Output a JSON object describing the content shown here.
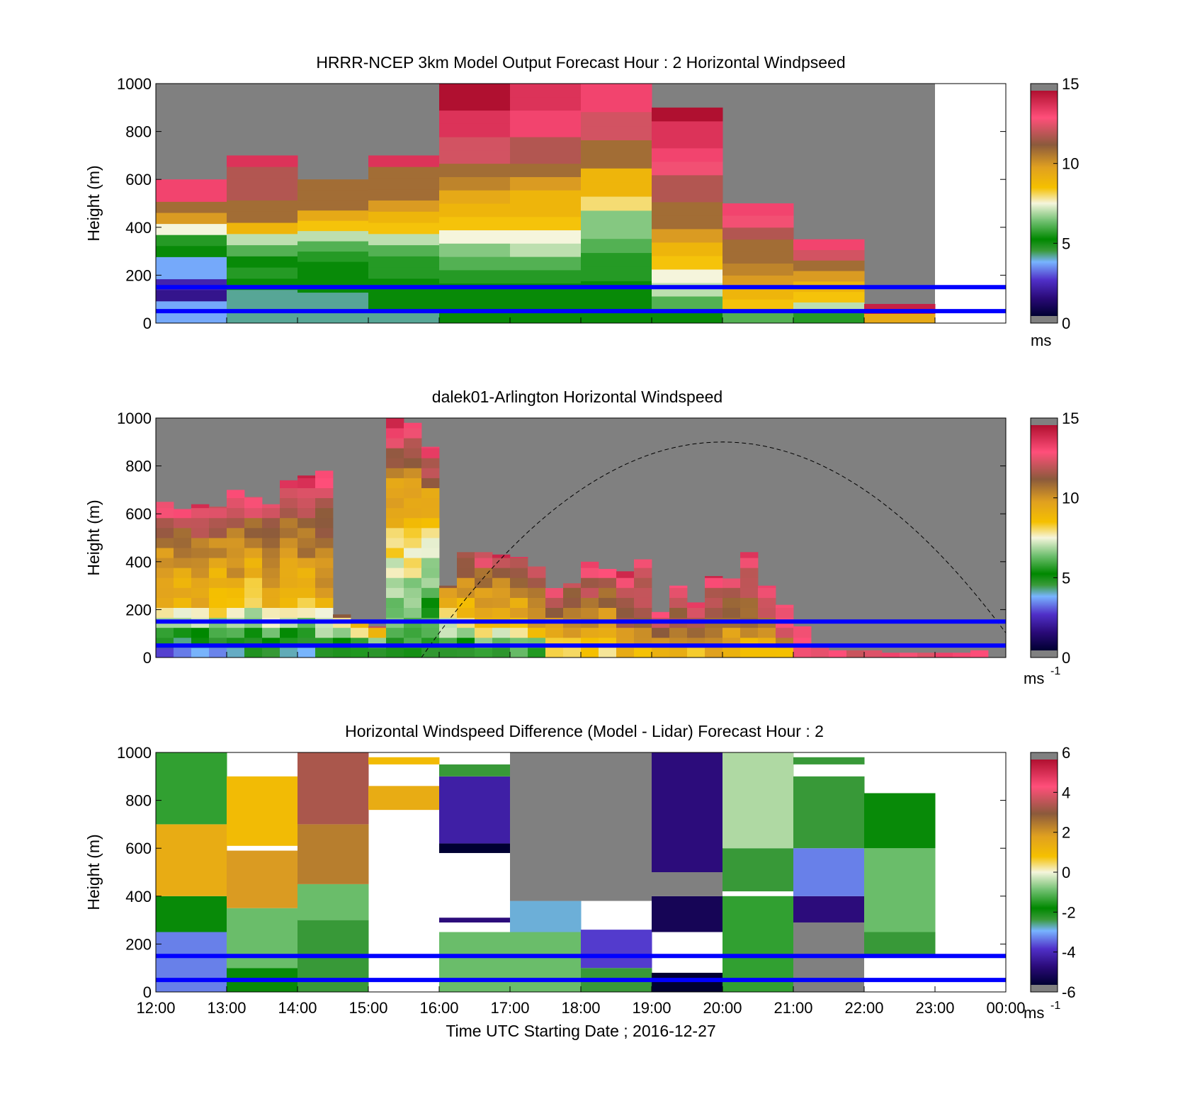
{
  "figure": {
    "xlabel": "Time UTC  Starting Date ; 2016-12-27",
    "x_tick_labels": [
      "12:00",
      "13:00",
      "14:00",
      "15:00",
      "16:00",
      "17:00",
      "18:00",
      "19:00",
      "20:00",
      "21:00",
      "22:00",
      "23:00",
      "00:00"
    ],
    "colors": {
      "missing": "#808080",
      "reference_lines": "#0000ff",
      "no_data": "#ffffff"
    }
  },
  "chart_data": [
    {
      "type": "heatmap",
      "title": "HRRR-NCEP 3km Model Output   Forecast Hour : 2 Horizontal Windpseed",
      "ylabel": "Height (m)",
      "ylim": [
        0,
        1000
      ],
      "y_ticks": [
        "0",
        "200",
        "400",
        "600",
        "800",
        "1000"
      ],
      "colorbar": {
        "range": [
          0,
          15
        ],
        "ticks": [
          "0",
          "5",
          "10",
          "15"
        ],
        "unit": "ms",
        "unit_sup": ""
      },
      "reference_lines_m": [
        150,
        50
      ],
      "columns": [
        {
          "time": "12:00",
          "top": 600,
          "levels": [
            3.5,
            3.5,
            1.5,
            2,
            3.5,
            3.5,
            5,
            5.5,
            7.5,
            10,
            11,
            13.5,
            13.5
          ]
        },
        {
          "time": "13:00",
          "top": 700,
          "levels": [
            4,
            4,
            4,
            5,
            5.5,
            5,
            6,
            7,
            9,
            11,
            11,
            12,
            12,
            12,
            14
          ]
        },
        {
          "time": "14:00",
          "top": 600,
          "levels": [
            4,
            4,
            4,
            5,
            5,
            5,
            5.5,
            6,
            7,
            8.5,
            9.5,
            11,
            11,
            11
          ]
        },
        {
          "time": "15:00",
          "top": 700,
          "levels": [
            4,
            5,
            5,
            5,
            5.5,
            5.5,
            6,
            7,
            8.5,
            9,
            10,
            11,
            11,
            11,
            14
          ]
        },
        {
          "time": "16:00",
          "top": 1000,
          "levels": [
            5,
            5,
            5,
            5.5,
            6,
            6.5,
            7.5,
            8.5,
            9,
            9.5,
            10.5,
            11,
            12.5,
            12.5,
            14,
            14,
            15,
            15
          ]
        },
        {
          "time": "17:00",
          "top": 1000,
          "levels": [
            5,
            5,
            5,
            5.5,
            6,
            7,
            7.5,
            8.5,
            9,
            9,
            10,
            11,
            12,
            12,
            13.5,
            13.5,
            14,
            14
          ]
        },
        {
          "time": "18:00",
          "top": 1000,
          "levels": [
            5,
            5,
            5,
            5.5,
            5.5,
            6,
            6.5,
            6.5,
            8,
            9,
            9,
            11,
            11,
            12.5,
            12.5,
            13.5,
            13.5
          ]
        },
        {
          "time": "19:00",
          "top": 900,
          "levels": [
            5,
            6,
            7,
            7.5,
            8.5,
            9,
            10,
            11,
            11,
            12,
            12,
            13,
            13.5,
            14,
            14,
            15
          ]
        },
        {
          "time": "20:00",
          "top": 500,
          "levels": [
            6,
            8.5,
            9,
            10,
            10.5,
            11,
            11,
            12,
            13,
            13.5
          ]
        },
        {
          "time": "21:00",
          "top": 350,
          "levels": [
            5.5,
            7,
            8.5,
            9,
            10,
            11,
            12.5,
            13.5
          ]
        },
        {
          "time": "22:00",
          "top": 80,
          "levels": [
            9.5,
            14.5
          ]
        },
        {
          "time": "23:00",
          "top": null,
          "levels": []
        }
      ]
    },
    {
      "type": "heatmap",
      "title": "dalek01-Arlington  Horizontal Windspeed",
      "ylabel": "Height (m)",
      "ylim": [
        0,
        1000
      ],
      "y_ticks": [
        "0",
        "200",
        "400",
        "600",
        "800",
        "1000"
      ],
      "colorbar": {
        "range": [
          0,
          15
        ],
        "ticks": [
          "0",
          "5",
          "10",
          "15"
        ],
        "unit": "ms",
        "unit_sup": "-1"
      },
      "reference_lines_m": [
        150,
        50
      ],
      "sun_curve": {
        "start_hour": 15.75,
        "peak_hour": 20.0,
        "peak_m": 900,
        "end_hour": 24.0
      },
      "columns": [
        {
          "time": "12:00",
          "top": 650,
          "low": 3,
          "mid": 9,
          "high": 13.5
        },
        {
          "time": "12:15",
          "top": 620,
          "low": 3,
          "mid": 8.5,
          "high": 13.5
        },
        {
          "time": "12:30",
          "top": 640,
          "low": 3,
          "mid": 9,
          "high": 14
        },
        {
          "time": "12:45",
          "top": 630,
          "low": 3,
          "mid": 8.5,
          "high": 13
        },
        {
          "time": "13:00",
          "top": 700,
          "low": 3.5,
          "mid": 9,
          "high": 14
        },
        {
          "time": "13:15",
          "top": 670,
          "low": 4,
          "mid": 8,
          "high": 13.5
        },
        {
          "time": "13:30",
          "top": 640,
          "low": 4,
          "mid": 9,
          "high": 13
        },
        {
          "time": "13:45",
          "top": 740,
          "low": 4,
          "mid": 8.5,
          "high": 14
        },
        {
          "time": "14:00",
          "top": 760,
          "low": 4,
          "mid": 9,
          "high": 14.5
        },
        {
          "time": "14:15",
          "top": 780,
          "low": 4.5,
          "mid": 9.5,
          "high": 14
        },
        {
          "time": "14:30",
          "top": 180,
          "low": 4.5,
          "mid": 6,
          "high": 12
        },
        {
          "time": "14:45",
          "top": 150,
          "low": 5,
          "mid": 6,
          "high": 11
        },
        {
          "time": "15:00",
          "top": 130,
          "low": 4.5,
          "mid": 6,
          "high": 13
        },
        {
          "time": "15:15",
          "top": 1000,
          "low": 5,
          "mid": 7,
          "high": 14.5
        },
        {
          "time": "15:30",
          "top": 980,
          "low": 5,
          "mid": 7,
          "high": 14
        },
        {
          "time": "15:45",
          "top": 880,
          "low": 5,
          "mid": 6,
          "high": 14
        },
        {
          "time": "16:00",
          "top": 300,
          "low": 5,
          "mid": 7,
          "high": 12
        },
        {
          "time": "16:15",
          "top": 440,
          "low": 4.5,
          "mid": 8.5,
          "high": 13
        },
        {
          "time": "16:30",
          "top": 440,
          "low": 5,
          "mid": 9,
          "high": 13.5
        },
        {
          "time": "16:45",
          "top": 430,
          "low": 5,
          "mid": 9,
          "high": 14
        },
        {
          "time": "17:00",
          "top": 420,
          "low": 5.5,
          "mid": 9,
          "high": 13.5
        },
        {
          "time": "17:15",
          "top": 380,
          "low": 5.5,
          "mid": 9.5,
          "high": 13
        },
        {
          "time": "17:30",
          "top": 290,
          "low": 8,
          "mid": 10,
          "high": 13.5
        },
        {
          "time": "17:45",
          "top": 310,
          "low": 7.5,
          "mid": 10,
          "high": 13
        },
        {
          "time": "18:00",
          "top": 400,
          "low": 8,
          "mid": 10.5,
          "high": 14
        },
        {
          "time": "18:15",
          "top": 370,
          "low": 8.5,
          "mid": 10,
          "high": 14
        },
        {
          "time": "18:30",
          "top": 360,
          "low": 9,
          "mid": 11,
          "high": 14.5
        },
        {
          "time": "18:45",
          "top": 410,
          "low": 9,
          "mid": 11,
          "high": 14
        },
        {
          "time": "19:00",
          "top": 190,
          "low": 9,
          "mid": 11,
          "high": 13.5
        },
        {
          "time": "19:15",
          "top": 300,
          "low": 9.5,
          "mid": 11,
          "high": 14
        },
        {
          "time": "19:30",
          "top": 230,
          "low": 9,
          "mid": 11.5,
          "high": 14
        },
        {
          "time": "19:45",
          "top": 340,
          "low": 9.5,
          "mid": 11,
          "high": 14
        },
        {
          "time": "20:00",
          "top": 330,
          "low": 9,
          "mid": 10.5,
          "high": 13.5
        },
        {
          "time": "20:15",
          "top": 440,
          "low": 8.5,
          "mid": 11,
          "high": 14.5
        },
        {
          "time": "20:30",
          "top": 300,
          "low": 8,
          "mid": 11,
          "high": 14
        },
        {
          "time": "20:45",
          "top": 220,
          "low": 8.5,
          "mid": 12,
          "high": 14
        },
        {
          "time": "21:00",
          "top": 130,
          "low": 13,
          "mid": 13.5,
          "high": 14
        },
        {
          "time": "21:15",
          "top": 40,
          "low": 13,
          "mid": 13.5,
          "high": 14
        },
        {
          "time": "21:30",
          "top": 30,
          "low": 13,
          "mid": 13.5,
          "high": 14
        },
        {
          "time": "21:45",
          "top": 30,
          "low": 13,
          "mid": 13.5,
          "high": 14
        },
        {
          "time": "22:00",
          "top": 30,
          "low": 13,
          "mid": 13.5,
          "high": 14
        },
        {
          "time": "22:15",
          "top": 20,
          "low": 13,
          "mid": 13.5,
          "high": 14
        },
        {
          "time": "22:30",
          "top": 20,
          "low": 13,
          "mid": 13.5,
          "high": 14
        },
        {
          "time": "22:45",
          "top": 20,
          "low": 13,
          "mid": 13.5,
          "high": 14
        },
        {
          "time": "23:00",
          "top": 20,
          "low": 13,
          "mid": 13.5,
          "high": 14
        },
        {
          "time": "23:15",
          "top": 20,
          "low": 13,
          "mid": 13.5,
          "high": 14
        },
        {
          "time": "23:30",
          "top": 30,
          "low": 13,
          "mid": 13.5,
          "high": 14
        },
        {
          "time": "23:45",
          "top": 0,
          "low": 13,
          "mid": 13.5,
          "high": 14
        }
      ]
    },
    {
      "type": "heatmap",
      "title": "Horizontal Windspeed Difference (Model - Lidar) Forecast Hour : 2",
      "ylabel": "Height (m)",
      "ylim": [
        0,
        1000
      ],
      "y_ticks": [
        "0",
        "200",
        "400",
        "600",
        "800",
        "1000"
      ],
      "colorbar": {
        "range": [
          -6,
          6
        ],
        "ticks": [
          "-6",
          "-4",
          "-2",
          "0",
          "2",
          "4",
          "6"
        ],
        "unit": "ms",
        "unit_sup": "-1"
      },
      "reference_lines_m": [
        150,
        50
      ],
      "columns": [
        {
          "time": "12:00",
          "segments": [
            {
              "from": 0,
              "to": 250,
              "value": -3.5
            },
            {
              "from": 250,
              "to": 400,
              "value": -2
            },
            {
              "from": 400,
              "to": 700,
              "value": 1.5
            },
            {
              "from": 700,
              "to": 1000,
              "value": -1.5
            }
          ]
        },
        {
          "time": "13:00",
          "segments": [
            {
              "from": 0,
              "to": 100,
              "value": -2
            },
            {
              "from": 100,
              "to": 350,
              "value": -1
            },
            {
              "from": 350,
              "to": 590,
              "value": 2
            },
            {
              "from": 610,
              "to": 900,
              "value": 1
            }
          ]
        },
        {
          "time": "14:00",
          "segments": [
            {
              "from": 0,
              "to": 300,
              "value": -2.5
            },
            {
              "from": 300,
              "to": 450,
              "value": -1
            },
            {
              "from": 450,
              "to": 700,
              "value": 2.5
            },
            {
              "from": 700,
              "to": 1000,
              "value": 3.5
            }
          ]
        },
        {
          "time": "15:00",
          "segments": [
            {
              "from": 760,
              "to": 860,
              "value": 1.5
            },
            {
              "from": 950,
              "to": 980,
              "value": 1
            }
          ]
        },
        {
          "time": "16:00",
          "segments": [
            {
              "from": 0,
              "to": 250,
              "value": -1
            },
            {
              "from": 290,
              "to": 310,
              "value": -5
            },
            {
              "from": 580,
              "to": 620,
              "value": -6
            },
            {
              "from": 620,
              "to": 900,
              "value": -4.5
            },
            {
              "from": 900,
              "to": 950,
              "value": -2.5
            }
          ]
        },
        {
          "time": "17:00",
          "segments": [
            {
              "from": 0,
              "to": 250,
              "value": -1
            },
            {
              "from": 250,
              "to": 380,
              "value": -3
            }
          ]
        },
        {
          "time": "18:00",
          "segments": [
            {
              "from": 0,
              "to": 100,
              "value": -2.5
            },
            {
              "from": 100,
              "to": 260,
              "value": -4
            }
          ]
        },
        {
          "time": "19:00",
          "segments": [
            {
              "from": 0,
              "to": 80,
              "value": -6
            },
            {
              "from": 250,
              "to": 400,
              "value": -5.5
            },
            {
              "from": 500,
              "to": 1000,
              "value": -5
            }
          ]
        },
        {
          "time": "20:00",
          "segments": [
            {
              "from": 0,
              "to": 400,
              "value": -1.5
            },
            {
              "from": 420,
              "to": 600,
              "value": -2.5
            },
            {
              "from": 600,
              "to": 1000,
              "value": -0.5
            }
          ]
        },
        {
          "time": "21:00",
          "segments": [
            {
              "from": 290,
              "to": 400,
              "value": -5
            },
            {
              "from": 400,
              "to": 600,
              "value": -3.5
            },
            {
              "from": 600,
              "to": 900,
              "value": -2.5
            },
            {
              "from": 950,
              "to": 980,
              "value": -2.5
            }
          ]
        },
        {
          "time": "22:00",
          "segments": [
            {
              "from": 150,
              "to": 250,
              "value": -2.5
            },
            {
              "from": 250,
              "to": 600,
              "value": -1
            },
            {
              "from": 600,
              "to": 830,
              "value": -2
            }
          ]
        },
        {
          "time": "23:00",
          "segments": []
        }
      ]
    }
  ]
}
